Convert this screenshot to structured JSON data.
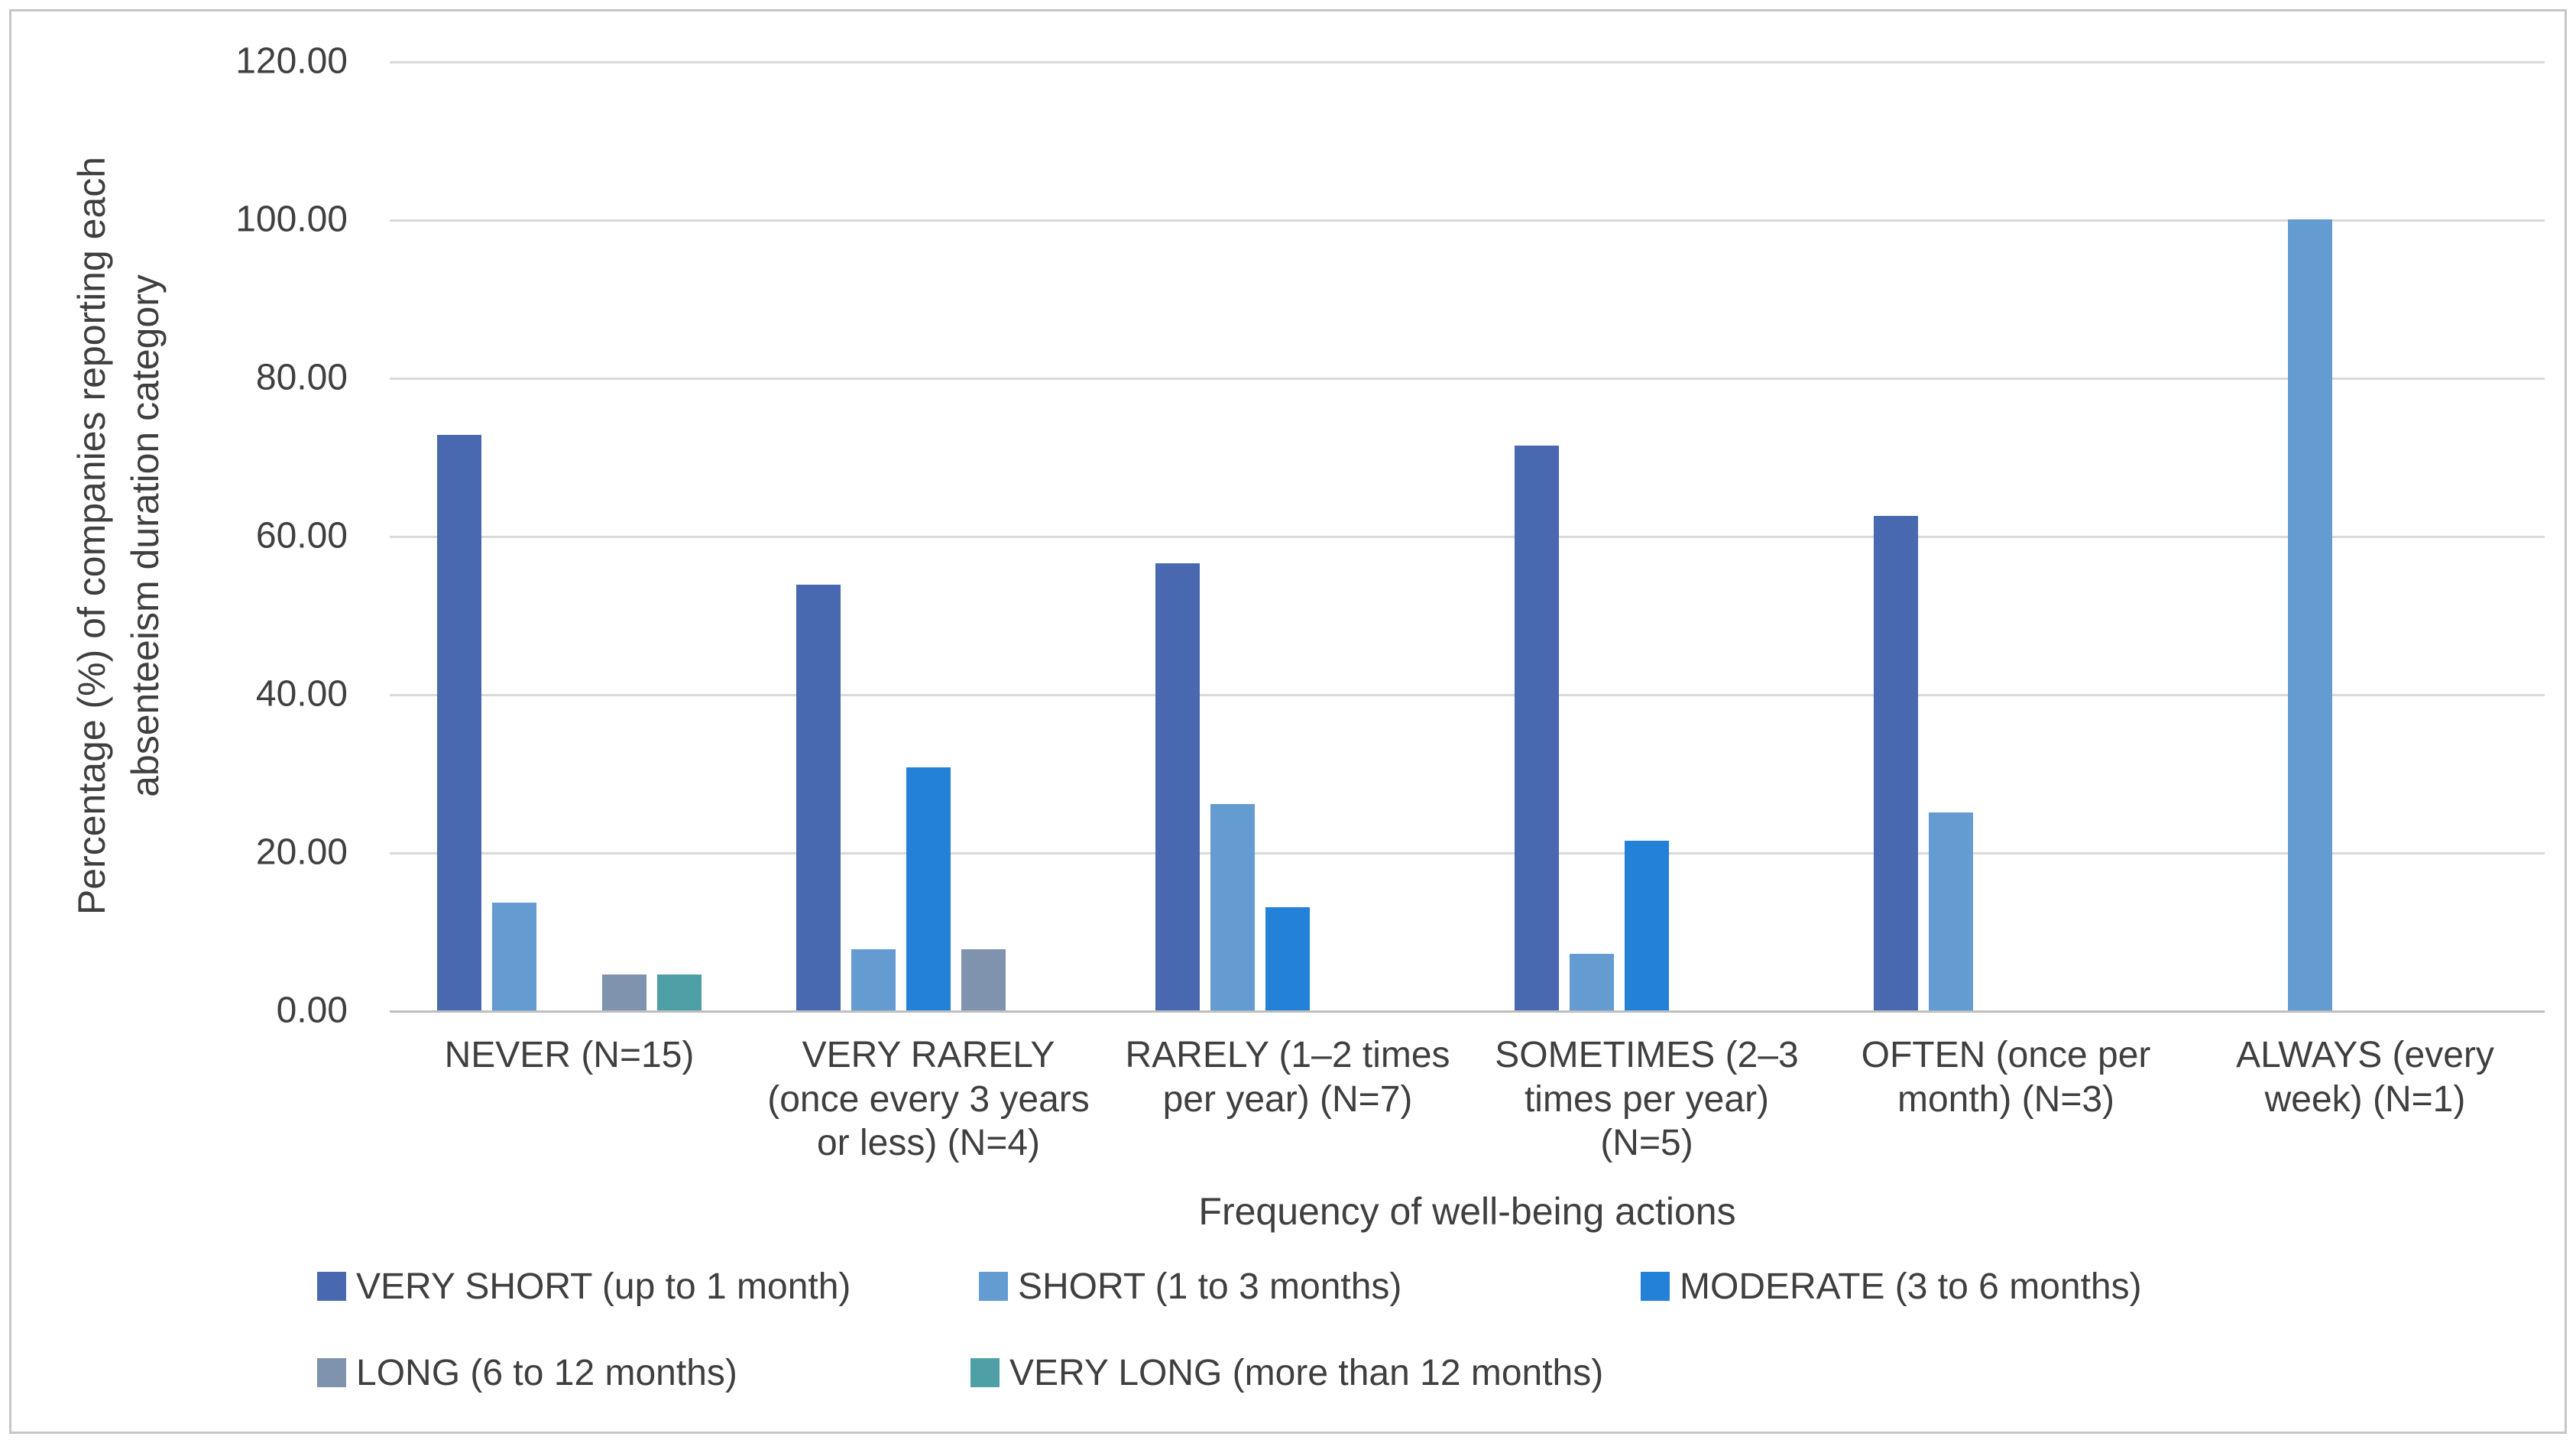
{
  "chart_data": {
    "type": "bar",
    "title": "",
    "xlabel": "Frequency of well-being actions",
    "ylabel": "Percentage (%) of companies reporting each absenteeism duration category",
    "ylim": [
      0,
      120
    ],
    "ytick_step": 20,
    "ytick_labels": [
      "120.00",
      "100.00",
      "80.00",
      "60.00",
      "40.00",
      "20.00",
      "0.00"
    ],
    "grid": true,
    "legend_position": "bottom",
    "text_color": "#3f3f3f",
    "gridline_color": "#d9d9d9",
    "categories": [
      "NEVER (N=15)",
      "VERY RARELY (once every 3 years or less) (N=4)",
      "RARELY (1–2 times per year) (N=7)",
      "SOMETIMES (2–3 times per year) (N=5)",
      "OFTEN (once per month) (N=3)",
      "ALWAYS (every week) (N=1)"
    ],
    "series": [
      {
        "name": "VERY SHORT (up to 1 month)",
        "color": "#4869af",
        "values": [
          72.73,
          53.85,
          56.52,
          71.43,
          62.5,
          0
        ]
      },
      {
        "name": "SHORT (1 to 3 months)",
        "color": "#649cd2",
        "values": [
          13.64,
          7.69,
          26.09,
          7.14,
          25.0,
          100.0
        ]
      },
      {
        "name": "MODERATE (3 to 6 months)",
        "color": "#2481d8",
        "values": [
          0,
          30.77,
          13.04,
          21.43,
          0,
          0
        ]
      },
      {
        "name": "LONG (6 to 12 months)",
        "color": "#8093ae",
        "values": [
          4.55,
          7.69,
          0,
          0,
          0,
          0
        ]
      },
      {
        "name": "VERY LONG (more than 12 months)",
        "color": "#4ea0a6",
        "values": [
          4.55,
          0,
          0,
          0,
          0,
          0
        ]
      }
    ]
  }
}
